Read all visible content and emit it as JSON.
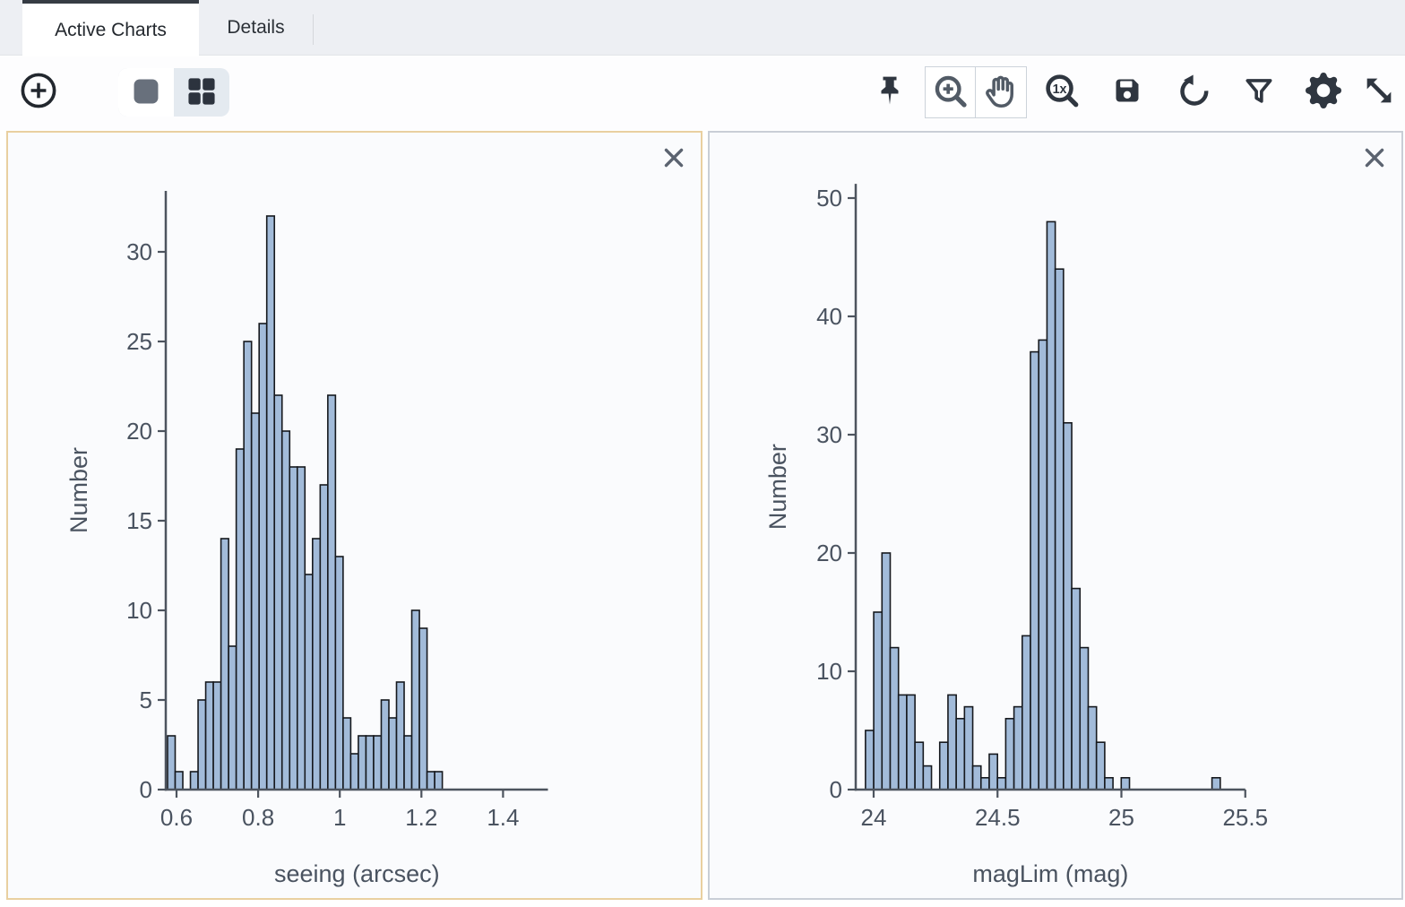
{
  "header": {
    "tabs": [
      {
        "label": "Active Charts",
        "active": true
      },
      {
        "label": "Details",
        "active": false
      }
    ]
  },
  "toolbar": {
    "icons": [
      {
        "name": "add-chart",
        "glyph": "plus-circle-icon"
      },
      {
        "name": "single-view",
        "glyph": "single-square-icon",
        "active": false
      },
      {
        "name": "grid-view",
        "glyph": "grid-2x2-icon",
        "active": true
      },
      {
        "name": "pin-chart",
        "glyph": "thumbtack-icon"
      },
      {
        "name": "zoom-mode",
        "glyph": "magnifier-plus-icon",
        "active": true
      },
      {
        "name": "pan-mode",
        "glyph": "hand-icon",
        "active": false
      },
      {
        "name": "zoom-reset",
        "glyph": "magnifier-1x-icon",
        "text": "1x"
      },
      {
        "name": "save-chart",
        "glyph": "floppy-disk-icon"
      },
      {
        "name": "restore-chart",
        "glyph": "circular-arrow-icon"
      },
      {
        "name": "filter-chart",
        "glyph": "funnel-icon"
      },
      {
        "name": "chart-settings",
        "glyph": "gear-icon"
      },
      {
        "name": "expand-chart",
        "glyph": "diagonal-arrows-icon"
      }
    ]
  },
  "panels": [
    {
      "title": "seeing histogram",
      "selected": true
    },
    {
      "title": "magLim histogram",
      "selected": false
    }
  ],
  "chart_data": [
    {
      "type": "bar",
      "subtype": "histogram",
      "title": "",
      "xlabel": "seeing (arcsec)",
      "ylabel": "Number",
      "bin_start": 0.578,
      "bin_width": 0.0187,
      "values": [
        3,
        1,
        0,
        1,
        5,
        6,
        6,
        14,
        8,
        19,
        25,
        21,
        26,
        32,
        22,
        20,
        18,
        18,
        12,
        14,
        17,
        22,
        13,
        4,
        2,
        3,
        3,
        3,
        5,
        4,
        6,
        3,
        10,
        9,
        1,
        1
      ],
      "xlim": [
        0.5737,
        1.51
      ],
      "ylim": [
        0,
        33.4
      ],
      "xtick_values": [
        0.6,
        0.8,
        1,
        1.2,
        1.4
      ],
      "xtick_labels": [
        "0.6",
        "0.8",
        "1",
        "1.2",
        "1.4"
      ],
      "ytick_values": [
        0,
        5,
        10,
        15,
        20,
        25,
        30
      ],
      "grid": false,
      "legend": "none"
    },
    {
      "type": "bar",
      "subtype": "histogram",
      "title": "",
      "xlabel": "magLim (mag)",
      "ylabel": "Number",
      "bin_start": 23.967,
      "bin_width": 0.0333,
      "values": [
        5,
        15,
        20,
        12,
        8,
        8,
        4,
        2,
        0,
        4,
        8,
        6,
        7,
        2,
        1,
        3,
        1,
        6,
        7,
        13,
        37,
        38,
        48,
        44,
        31,
        17,
        12,
        7,
        4,
        1,
        0,
        1,
        0,
        0,
        0,
        0,
        0,
        0,
        0,
        0,
        0,
        0,
        1
      ],
      "xlim": [
        23.928,
        25.5
      ],
      "ylim": [
        0,
        51.2
      ],
      "xtick_values": [
        24,
        24.5,
        25,
        25.5
      ],
      "xtick_labels": [
        "24",
        "24.5",
        "25",
        "25.5"
      ],
      "ytick_values": [
        0,
        10,
        20,
        30,
        40,
        50
      ],
      "grid": false,
      "legend": "none"
    }
  ],
  "colors": {
    "bar_fill": "#a2bbd9",
    "bar_stroke": "#16191e",
    "axis_line": "#4d545e",
    "axis_text": "#4a5360",
    "selected_panel_border": "#e9d0a0",
    "panel_border": "#c9ced6",
    "icon": "#30363f",
    "icon_muted": "#525b66",
    "tabbar_bg": "#edeff3",
    "active_tab_marker": "#363c44",
    "toggle_bg": "#e4eaf0"
  }
}
